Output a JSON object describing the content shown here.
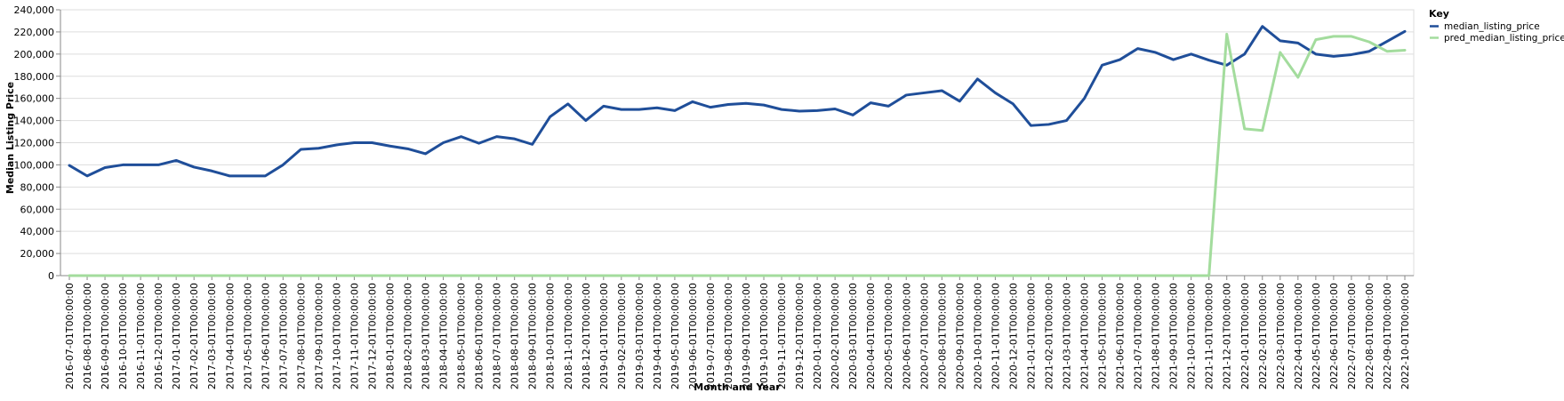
{
  "chart_data": {
    "type": "line",
    "xlabel": "Month and Year",
    "ylabel": "Median Listing Price",
    "ylim": [
      0,
      240000
    ],
    "yticks": [
      "0",
      "20,000",
      "40,000",
      "60,000",
      "80,000",
      "100,000",
      "120,000",
      "140,000",
      "160,000",
      "180,000",
      "200,000",
      "220,000",
      "240,000"
    ],
    "grid": true,
    "legend": {
      "title": "Key",
      "placement": "top-right"
    },
    "categories": [
      "2016-07-01T00:00:00",
      "2016-08-01T00:00:00",
      "2016-09-01T00:00:00",
      "2016-10-01T00:00:00",
      "2016-11-01T00:00:00",
      "2016-12-01T00:00:00",
      "2017-01-01T00:00:00",
      "2017-02-01T00:00:00",
      "2017-03-01T00:00:00",
      "2017-04-01T00:00:00",
      "2017-05-01T00:00:00",
      "2017-06-01T00:00:00",
      "2017-07-01T00:00:00",
      "2017-08-01T00:00:00",
      "2017-09-01T00:00:00",
      "2017-10-01T00:00:00",
      "2017-11-01T00:00:00",
      "2017-12-01T00:00:00",
      "2018-01-01T00:00:00",
      "2018-02-01T00:00:00",
      "2018-03-01T00:00:00",
      "2018-04-01T00:00:00",
      "2018-05-01T00:00:00",
      "2018-06-01T00:00:00",
      "2018-07-01T00:00:00",
      "2018-08-01T00:00:00",
      "2018-09-01T00:00:00",
      "2018-10-01T00:00:00",
      "2018-11-01T00:00:00",
      "2018-12-01T00:00:00",
      "2019-01-01T00:00:00",
      "2019-02-01T00:00:00",
      "2019-03-01T00:00:00",
      "2019-04-01T00:00:00",
      "2019-05-01T00:00:00",
      "2019-06-01T00:00:00",
      "2019-07-01T00:00:00",
      "2019-08-01T00:00:00",
      "2019-09-01T00:00:00",
      "2019-10-01T00:00:00",
      "2019-11-01T00:00:00",
      "2019-12-01T00:00:00",
      "2020-01-01T00:00:00",
      "2020-02-01T00:00:00",
      "2020-03-01T00:00:00",
      "2020-04-01T00:00:00",
      "2020-05-01T00:00:00",
      "2020-06-01T00:00:00",
      "2020-07-01T00:00:00",
      "2020-08-01T00:00:00",
      "2020-09-01T00:00:00",
      "2020-10-01T00:00:00",
      "2020-11-01T00:00:00",
      "2020-12-01T00:00:00",
      "2021-01-01T00:00:00",
      "2021-02-01T00:00:00",
      "2021-03-01T00:00:00",
      "2021-04-01T00:00:00",
      "2021-05-01T00:00:00",
      "2021-06-01T00:00:00",
      "2021-07-01T00:00:00",
      "2021-08-01T00:00:00",
      "2021-09-01T00:00:00",
      "2021-10-01T00:00:00",
      "2021-11-01T00:00:00",
      "2021-12-01T00:00:00",
      "2022-01-01T00:00:00",
      "2022-02-01T00:00:00",
      "2022-03-01T00:00:00",
      "2022-04-01T00:00:00",
      "2022-05-01T00:00:00",
      "2022-06-01T00:00:00",
      "2022-07-01T00:00:00",
      "2022-08-01T00:00:00",
      "2022-09-01T00:00:00",
      "2022-10-01T00:00:00"
    ],
    "series": [
      {
        "name": "median_listing_price",
        "color": "#1f4e99",
        "values": [
          99500,
          90000,
          97500,
          100000,
          100000,
          100000,
          104000,
          98000,
          94500,
          90000,
          90000,
          90000,
          100000,
          114000,
          115000,
          118000,
          120000,
          120000,
          117000,
          114500,
          110000,
          120000,
          125500,
          119500,
          125500,
          123500,
          118500,
          143500,
          155000,
          140000,
          153000,
          150000,
          150000,
          151500,
          149000,
          157000,
          152000,
          154500,
          155500,
          154000,
          150000,
          148500,
          149000,
          150500,
          145000,
          156000,
          153000,
          163000,
          165000,
          167000,
          157500,
          177500,
          165000,
          155000,
          135500,
          136500,
          140000,
          160000,
          190000,
          195000,
          205000,
          201500,
          195000,
          200000,
          194500,
          190000,
          200000,
          225000,
          212000,
          210000,
          200000,
          198000,
          199500,
          202500,
          211500,
          220500
        ]
      },
      {
        "name": "pred_median_listing_price",
        "color": "#a3dc9d",
        "values": [
          0,
          0,
          0,
          0,
          0,
          0,
          0,
          0,
          0,
          0,
          0,
          0,
          0,
          0,
          0,
          0,
          0,
          0,
          0,
          0,
          0,
          0,
          0,
          0,
          0,
          0,
          0,
          0,
          0,
          0,
          0,
          0,
          0,
          0,
          0,
          0,
          0,
          0,
          0,
          0,
          0,
          0,
          0,
          0,
          0,
          0,
          0,
          0,
          0,
          0,
          0,
          0,
          0,
          0,
          0,
          0,
          0,
          0,
          0,
          0,
          0,
          0,
          0,
          0,
          0,
          218000,
          132500,
          131000,
          201500,
          179000,
          213000,
          216000,
          216000,
          211000,
          202500,
          203500
        ]
      }
    ]
  }
}
